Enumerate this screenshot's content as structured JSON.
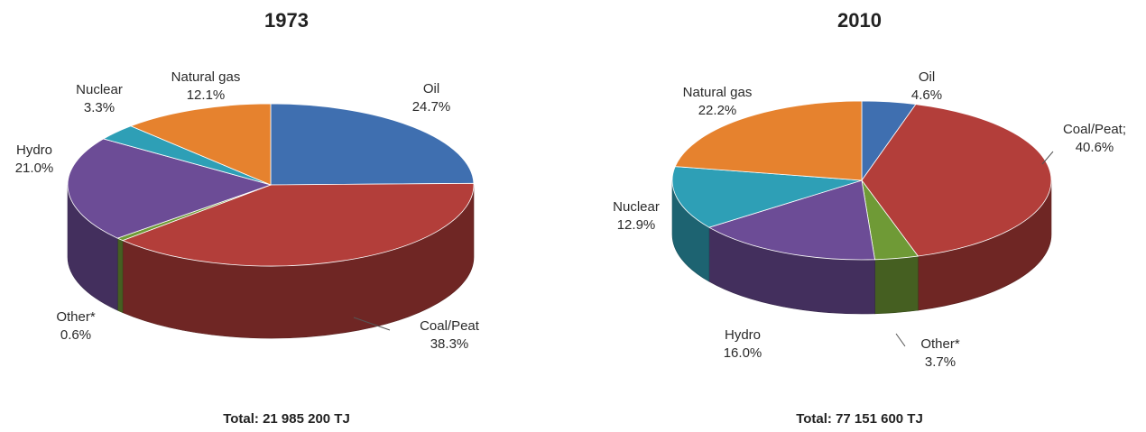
{
  "colors": {
    "Oil": "#3f6fb0",
    "Coal/Peat": "#b33e3a",
    "Other*": "#6f9a36",
    "Hydro": "#6c4c96",
    "Nuclear": "#2e9fb6",
    "Natural gas": "#e6822e"
  },
  "chart_data": [
    {
      "type": "pie",
      "title": "1973",
      "total": "Total: 21 985 200 TJ",
      "slices": [
        {
          "label": "Oil",
          "value": 24.7,
          "value_label": "24.7%"
        },
        {
          "label": "Coal/Peat",
          "value": 38.3,
          "value_label": "38.3%"
        },
        {
          "label": "Other*",
          "value": 0.6,
          "value_label": "0.6%"
        },
        {
          "label": "Hydro",
          "value": 21.0,
          "value_label": "21.0%"
        },
        {
          "label": "Nuclear",
          "value": 3.3,
          "value_label": "3.3%"
        },
        {
          "label": "Natural gas",
          "value": 12.1,
          "value_label": "12.1%"
        }
      ]
    },
    {
      "type": "pie",
      "title": "2010",
      "total": "Total: 77 151 600 TJ",
      "slices": [
        {
          "label": "Oil",
          "value": 4.6,
          "value_label": "4.6%"
        },
        {
          "label": "Coal/Peat;",
          "color_key": "Coal/Peat",
          "value": 40.6,
          "value_label": "40.6%"
        },
        {
          "label": "Other*",
          "value": 3.7,
          "value_label": "3.7%"
        },
        {
          "label": "Hydro",
          "value": 16.0,
          "value_label": "16.0%"
        },
        {
          "label": "Nuclear",
          "value": 12.9,
          "value_label": "12.9%"
        },
        {
          "label": "Natural gas",
          "value": 22.2,
          "value_label": "22.2%"
        }
      ]
    }
  ]
}
